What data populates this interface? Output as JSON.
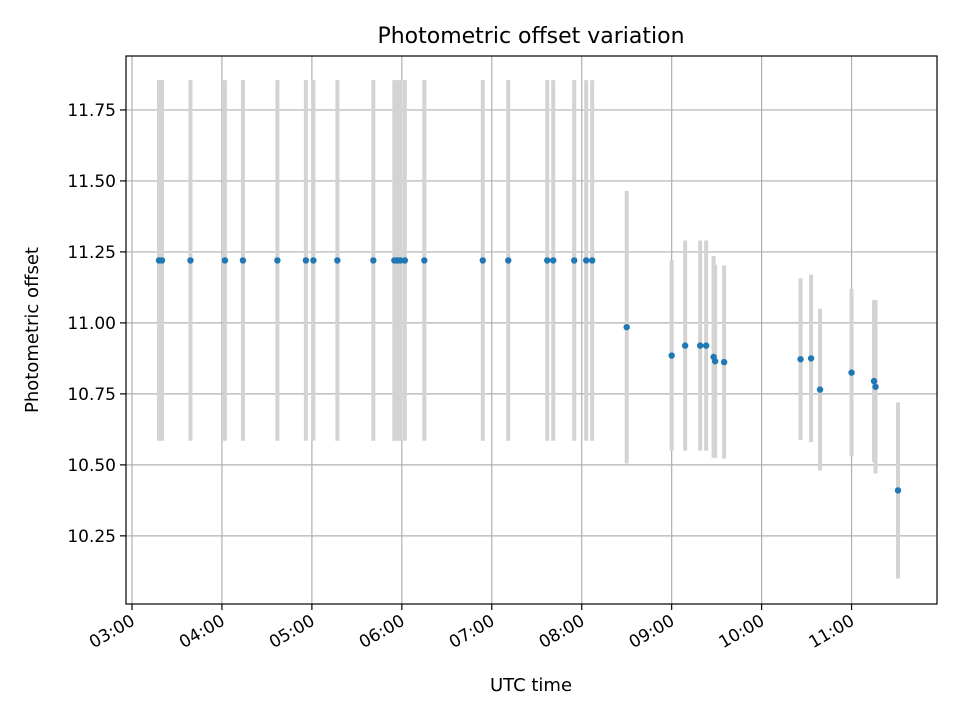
{
  "chart_data": {
    "type": "scatter",
    "title": "Photometric offset variation",
    "xlabel": "UTC time",
    "ylabel": "Photometric offset",
    "x_range": [
      "02:56",
      "11:57"
    ],
    "ylim": [
      10.01,
      11.94
    ],
    "grid": true,
    "colors": {
      "points": "#1f77b4",
      "errorbars": "#d3d3d3",
      "grid": "#b0b0b0"
    },
    "x_ticks": [
      "03:00",
      "04:00",
      "05:00",
      "06:00",
      "07:00",
      "08:00",
      "09:00",
      "10:00",
      "11:00"
    ],
    "y_ticks": [
      "10.25",
      "10.50",
      "10.75",
      "11.00",
      "11.25",
      "11.50",
      "11.75"
    ],
    "series": [
      {
        "points": [
          {
            "time": "03:18",
            "y": 11.22,
            "yerr": 0.635
          },
          {
            "time": "03:20",
            "y": 11.22,
            "yerr": 0.635
          },
          {
            "time": "03:39",
            "y": 11.22,
            "yerr": 0.635
          },
          {
            "time": "04:02",
            "y": 11.22,
            "yerr": 0.635
          },
          {
            "time": "04:14",
            "y": 11.22,
            "yerr": 0.635
          },
          {
            "time": "04:37",
            "y": 11.22,
            "yerr": 0.635
          },
          {
            "time": "04:56",
            "y": 11.22,
            "yerr": 0.635
          },
          {
            "time": "05:01",
            "y": 11.22,
            "yerr": 0.635
          },
          {
            "time": "05:17",
            "y": 11.22,
            "yerr": 0.635
          },
          {
            "time": "05:41",
            "y": 11.22,
            "yerr": 0.635
          },
          {
            "time": "05:55",
            "y": 11.22,
            "yerr": 0.635
          },
          {
            "time": "05:57",
            "y": 11.22,
            "yerr": 0.635
          },
          {
            "time": "05:59",
            "y": 11.22,
            "yerr": 0.635
          },
          {
            "time": "06:02",
            "y": 11.22,
            "yerr": 0.635
          },
          {
            "time": "06:15",
            "y": 11.22,
            "yerr": 0.635
          },
          {
            "time": "06:54",
            "y": 11.22,
            "yerr": 0.635
          },
          {
            "time": "07:11",
            "y": 11.22,
            "yerr": 0.635
          },
          {
            "time": "07:37",
            "y": 11.22,
            "yerr": 0.635
          },
          {
            "time": "07:41",
            "y": 11.22,
            "yerr": 0.635
          },
          {
            "time": "07:55",
            "y": 11.22,
            "yerr": 0.635
          },
          {
            "time": "08:03",
            "y": 11.22,
            "yerr": 0.635
          },
          {
            "time": "08:07",
            "y": 11.22,
            "yerr": 0.635
          },
          {
            "time": "08:30",
            "y": 10.985,
            "yerr": 0.48
          },
          {
            "time": "09:00",
            "y": 10.885,
            "yerr": 0.335
          },
          {
            "time": "09:09",
            "y": 10.92,
            "yerr": 0.37
          },
          {
            "time": "09:19",
            "y": 10.92,
            "yerr": 0.37
          },
          {
            "time": "09:23",
            "y": 10.92,
            "yerr": 0.37
          },
          {
            "time": "09:28",
            "y": 10.88,
            "yerr": 0.355
          },
          {
            "time": "09:29",
            "y": 10.865,
            "yerr": 0.34
          },
          {
            "time": "09:35",
            "y": 10.862,
            "yerr": 0.34
          },
          {
            "time": "10:26",
            "y": 10.872,
            "yerr": 0.285
          },
          {
            "time": "10:33",
            "y": 10.875,
            "yerr": 0.295
          },
          {
            "time": "10:39",
            "y": 10.765,
            "yerr": 0.285
          },
          {
            "time": "11:00",
            "y": 10.825,
            "yerr": 0.295
          },
          {
            "time": "11:15",
            "y": 10.795,
            "yerr": 0.285
          },
          {
            "time": "11:16",
            "y": 10.775,
            "yerr": 0.305
          },
          {
            "time": "11:31",
            "y": 10.41,
            "yerr": 0.31
          }
        ]
      }
    ]
  }
}
